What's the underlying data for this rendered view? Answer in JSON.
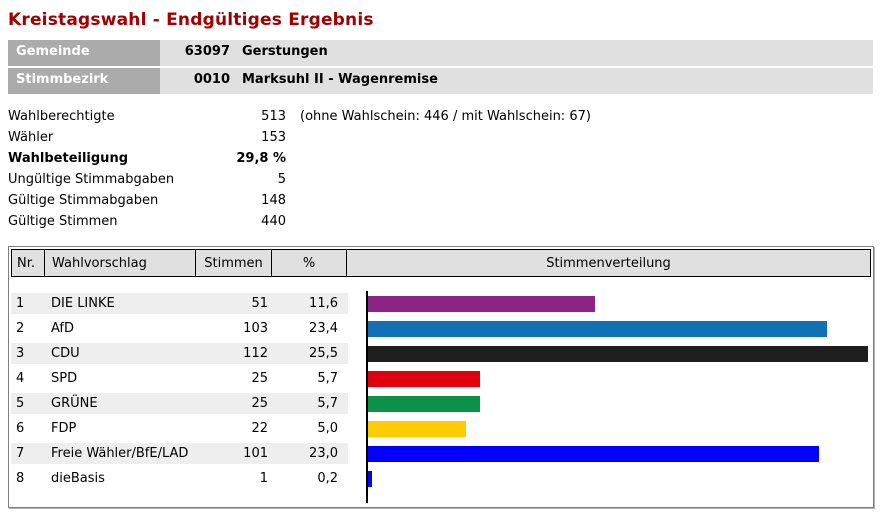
{
  "title": "Kreistagswahl - Endgültiges Ergebnis",
  "district_info": {
    "rows": [
      {
        "label": "Gemeinde",
        "code": "63097",
        "name": "Gerstungen"
      },
      {
        "label": "Stimmbezirk",
        "code": "0010",
        "name": "Marksuhl II - Wagenremise"
      }
    ]
  },
  "summary": {
    "rows": [
      {
        "label": "Wahlberechtigte",
        "value": "513",
        "note": "(ohne Wahlschein: 446 / mit Wahlschein: 67)",
        "bold": false
      },
      {
        "label": "Wähler",
        "value": "153",
        "note": "",
        "bold": false
      },
      {
        "label": "Wahlbeteiligung",
        "value": "29,8 %",
        "note": "",
        "bold": true
      },
      {
        "label": "Ungültige Stimmabgaben",
        "value": "5",
        "note": "",
        "bold": false
      },
      {
        "label": "Gültige Stimmabgaben",
        "value": "148",
        "note": "",
        "bold": false
      },
      {
        "label": "Gültige Stimmen",
        "value": "440",
        "note": "",
        "bold": false
      }
    ]
  },
  "results_table": {
    "columns": {
      "nr": "Nr.",
      "wahlvorschlag": "Wahlvorschlag",
      "stimmen": "Stimmen",
      "percent": "%",
      "verteilung": "Stimmenverteilung"
    },
    "rows": [
      {
        "nr": "1",
        "party": "DIE LINKE",
        "stimmen": "51",
        "percent": "11,6",
        "percent_value": 11.6,
        "color": "#8c2487"
      },
      {
        "nr": "2",
        "party": "AfD",
        "stimmen": "103",
        "percent": "23,4",
        "percent_value": 23.4,
        "color": "#1270b4"
      },
      {
        "nr": "3",
        "party": "CDU",
        "stimmen": "112",
        "percent": "25,5",
        "percent_value": 25.5,
        "color": "#1e1e1e"
      },
      {
        "nr": "4",
        "party": "SPD",
        "stimmen": "25",
        "percent": "5,7",
        "percent_value": 5.7,
        "color": "#e2000f"
      },
      {
        "nr": "5",
        "party": "GRÜNE",
        "stimmen": "25",
        "percent": "5,7",
        "percent_value": 5.7,
        "color": "#0c9246"
      },
      {
        "nr": "6",
        "party": "FDP",
        "stimmen": "22",
        "percent": "5,0",
        "percent_value": 5.0,
        "color": "#ffcc00"
      },
      {
        "nr": "7",
        "party": "Freie Wähler/BfE/LAD",
        "stimmen": "101",
        "percent": "23,0",
        "percent_value": 23.0,
        "color": "#0000ff"
      },
      {
        "nr": "8",
        "party": "dieBasis",
        "stimmen": "1",
        "percent": "0,2",
        "percent_value": 0.2,
        "color": "#0000ff"
      }
    ]
  },
  "chart_data": {
    "type": "bar",
    "orientation": "horizontal",
    "title": "Stimmenverteilung",
    "categories": [
      "DIE LINKE",
      "AfD",
      "CDU",
      "SPD",
      "GRÜNE",
      "FDP",
      "Freie Wähler/BfE/LAD",
      "dieBasis"
    ],
    "series": [
      {
        "name": "Stimmen",
        "values": [
          51,
          103,
          112,
          25,
          25,
          22,
          101,
          1
        ]
      },
      {
        "name": "Prozent",
        "values": [
          11.6,
          23.4,
          25.5,
          5.7,
          5.7,
          5.0,
          23.0,
          0.2
        ]
      }
    ],
    "colors": [
      "#8c2487",
      "#1270b4",
      "#1e1e1e",
      "#e2000f",
      "#0c9246",
      "#ffcc00",
      "#0000ff",
      "#0000ff"
    ],
    "axis": {
      "baseline_color": "#000000",
      "grid": false,
      "legend": "none"
    }
  },
  "colors": {
    "title_red": "#a00000",
    "label_gray": "#ababab",
    "value_gray": "#e0e0e0",
    "row_alt_gray": "#eeeeee",
    "table_border": "#7f7f7f"
  }
}
